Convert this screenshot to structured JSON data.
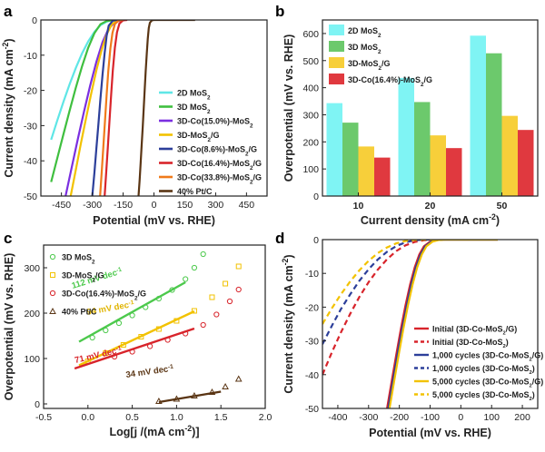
{
  "panel_labels": [
    "a",
    "b",
    "c",
    "d"
  ],
  "chart_data": [
    {
      "panel": "a",
      "type": "line",
      "xlabel": "Potential (mV vs. RHE)",
      "ylabel": "Current density (mA cm⁻²)",
      "xlim": [
        -550,
        550
      ],
      "ylim": [
        -50,
        0
      ],
      "xticks": [
        "-450",
        "-300",
        "-150",
        "0",
        "150",
        "300",
        "450"
      ],
      "xtick_values": [
        -450,
        -300,
        -150,
        0,
        150,
        300,
        450
      ],
      "yticks": [
        "0",
        "-10",
        "-20",
        "-30",
        "-40",
        "-50"
      ],
      "ytick_values": [
        0,
        -10,
        -20,
        -30,
        -40,
        -50
      ],
      "legend_position": "right",
      "series": [
        {
          "name": "2D MoS₂",
          "color": "#5fe6e6",
          "x": [
            -500,
            -470,
            -440,
            -410,
            -380,
            -350,
            -320,
            -290,
            -260,
            -230,
            -215,
            -200,
            -180,
            -160,
            -150
          ],
          "y": [
            -34,
            -28.5,
            -23.2,
            -18.2,
            -13.6,
            -9.5,
            -6.1,
            -3.4,
            -1.5,
            -0.5,
            -0.2,
            -0.1,
            0,
            0,
            0
          ]
        },
        {
          "name": "3D MoS₂",
          "color": "#3fbf3f",
          "x": [
            -500,
            -470,
            -440,
            -410,
            -380,
            -350,
            -320,
            -290,
            -260,
            -230,
            -200,
            -180,
            -170
          ],
          "y": [
            -46,
            -39.2,
            -32.4,
            -25.7,
            -19.2,
            -13.2,
            -7.9,
            -3.8,
            -1.2,
            -0.3,
            -0.1,
            0,
            0
          ]
        },
        {
          "name": "3D-Co(15.0%)-MoS₂",
          "color": "#7b2fe0",
          "x": [
            -430,
            -400,
            -370,
            -340,
            -310,
            -280,
            -250,
            -220,
            -190,
            -160,
            -140
          ],
          "y": [
            -50,
            -41.8,
            -33.8,
            -26.0,
            -18.6,
            -11.9,
            -6.3,
            -2.4,
            -0.6,
            -0.1,
            0
          ]
        },
        {
          "name": "3D-MoS₂/G",
          "color": "#f2c200",
          "x": [
            -405,
            -380,
            -355,
            -330,
            -305,
            -280,
            -255,
            -230,
            -205,
            -180,
            -160
          ],
          "y": [
            -50,
            -42.5,
            -35.0,
            -27.8,
            -20.8,
            -14.3,
            -8.6,
            -4.1,
            -1.2,
            -0.2,
            0
          ]
        },
        {
          "name": "3D-Co(8.6%)-MoS₂/G",
          "color": "#2c3f9a",
          "x": [
            -300,
            -290,
            -280,
            -270,
            -260,
            -250,
            -240,
            -230,
            -220,
            -200,
            -180
          ],
          "y": [
            -50,
            -43.5,
            -36.5,
            -29.4,
            -22.3,
            -15.5,
            -9.4,
            -4.5,
            -1.6,
            -0.2,
            0
          ]
        },
        {
          "name": "3D-Co(16.4%)-MoS₂/G",
          "color": "#d8242b",
          "x": [
            -240,
            -232,
            -224,
            -216,
            -208,
            -200,
            -190,
            -180,
            -168,
            -150,
            -130
          ],
          "y": [
            -50,
            -43.0,
            -35.8,
            -28.4,
            -21.1,
            -14.3,
            -7.8,
            -3.5,
            -1.0,
            -0.1,
            0
          ]
        },
        {
          "name": "3D-Co(33.8%)-MoS₂/G",
          "color": "#f07a1a",
          "x": [
            -262,
            -254,
            -246,
            -238,
            -230,
            -222,
            -212,
            -202,
            -190,
            -170,
            -150
          ],
          "y": [
            -50,
            -43.1,
            -35.9,
            -28.6,
            -21.3,
            -14.6,
            -8.1,
            -3.7,
            -1.1,
            -0.1,
            0
          ]
        },
        {
          "name": "40% Pt/C",
          "color": "#5a3514",
          "x": [
            -75,
            -70,
            -65,
            -60,
            -55,
            -50,
            -45,
            -40,
            -35,
            -30,
            -25,
            -20,
            -10,
            0,
            200
          ],
          "y": [
            -50,
            -45.6,
            -40.8,
            -35.8,
            -30.6,
            -25.2,
            -19.8,
            -14.5,
            -9.5,
            -5.3,
            -2.3,
            -0.8,
            -0.1,
            0,
            0
          ]
        }
      ]
    },
    {
      "panel": "b",
      "type": "bar",
      "xlabel": "Current density (mA cm⁻²)",
      "ylabel": "Overpotential (mV vs. RHE)",
      "categories": [
        "10",
        "20",
        "50"
      ],
      "ylim": [
        0,
        650
      ],
      "yticks": [
        "0",
        "100",
        "200",
        "300",
        "400",
        "500",
        "600"
      ],
      "ytick_values": [
        0,
        100,
        200,
        300,
        400,
        500,
        600
      ],
      "legend_position": "top-left",
      "series": [
        {
          "name": "2D MoS₂",
          "color": "#7ff4f4",
          "values": [
            343,
            436,
            592
          ]
        },
        {
          "name": "3D MoS₂",
          "color": "#6cc96c",
          "values": [
            271,
            347,
            527
          ]
        },
        {
          "name": "3D-MoS₂/G",
          "color": "#f7cf3a",
          "values": [
            183,
            224,
            296
          ]
        },
        {
          "name": "3D-Co(16.4%)-MoS₂/G",
          "color": "#e0393f",
          "values": [
            142,
            177,
            244
          ]
        }
      ]
    },
    {
      "panel": "c",
      "type": "scatter",
      "xlabel": "Log[j /(mA cm⁻²)]",
      "ylabel": "Overpotential (mV vs. RHE)",
      "xlim": [
        -0.5,
        2.0
      ],
      "ylim": [
        -10,
        350
      ],
      "xticks": [
        "-0.5",
        "0.0",
        "0.5",
        "1.0",
        "1.5",
        "2.0"
      ],
      "xtick_values": [
        -0.5,
        0.0,
        0.5,
        1.0,
        1.5,
        2.0
      ],
      "yticks": [
        "0",
        "100",
        "200",
        "300"
      ],
      "ytick_values": [
        0,
        100,
        200,
        300
      ],
      "legend_position": "top-left",
      "series": [
        {
          "name": "3D MoS₂",
          "color": "#4cc94c",
          "marker": "circle",
          "x": [
            0.05,
            0.2,
            0.35,
            0.5,
            0.65,
            0.8,
            0.95,
            1.1,
            1.2,
            1.3
          ],
          "y": [
            146,
            162,
            178,
            195,
            213,
            232,
            251,
            275,
            300,
            330
          ],
          "fit": {
            "x": [
              -0.1,
              1.1
            ],
            "y": [
              137,
              268
            ]
          }
        },
        {
          "name": "3D-MoS₂/G",
          "color": "#f2c200",
          "marker": "square",
          "x": [
            0.0,
            0.2,
            0.4,
            0.6,
            0.8,
            1.0,
            1.2,
            1.4,
            1.55,
            1.7
          ],
          "y": [
            94,
            112,
            130,
            148,
            165,
            183,
            205,
            235,
            265,
            303
          ],
          "fit": {
            "x": [
              -0.1,
              1.2
            ],
            "y": [
              85,
              204
            ]
          }
        },
        {
          "name": "3D-Co(16.4%)-MoS₂/G",
          "color": "#d8242b",
          "marker": "circle",
          "x": [
            0.3,
            0.5,
            0.7,
            0.9,
            1.1,
            1.3,
            1.45,
            1.6,
            1.7
          ],
          "y": [
            104,
            115,
            127,
            141,
            155,
            174,
            197,
            226,
            252
          ],
          "fit": {
            "x": [
              -0.15,
              1.2
            ],
            "y": [
              78,
              166
            ]
          }
        },
        {
          "name": "40% Pt/C",
          "color": "#5a3514",
          "marker": "triangle",
          "x": [
            0.8,
            1.0,
            1.2,
            1.4,
            1.55,
            1.7
          ],
          "y": [
            6,
            11,
            18,
            26,
            38,
            55
          ],
          "fit": {
            "x": [
              0.8,
              1.5
            ],
            "y": [
              4,
              27
            ]
          }
        }
      ],
      "annotations": [
        {
          "text": "112 mV dec⁻¹",
          "color": "#4cc94c"
        },
        {
          "text": "94 mV dec⁻¹",
          "color": "#e0b400"
        },
        {
          "text": "71 mV dec⁻¹",
          "color": "#d8242b"
        },
        {
          "text": "34 mV dec⁻¹",
          "color": "#5a3514"
        }
      ]
    },
    {
      "panel": "d",
      "type": "line",
      "xlabel": "Potential (mV vs. RHE)",
      "ylabel": "Current density (mA cm⁻²)",
      "xlim": [
        -450,
        250
      ],
      "ylim": [
        -50,
        0
      ],
      "xticks": [
        "-400",
        "-300",
        "-200",
        "-100",
        "0",
        "100",
        "200"
      ],
      "xtick_values": [
        -400,
        -300,
        -200,
        -100,
        0,
        100,
        200
      ],
      "yticks": [
        "0",
        "-10",
        "-20",
        "-30",
        "-40",
        "-50"
      ],
      "ytick_values": [
        0,
        -10,
        -20,
        -30,
        -40,
        -50
      ],
      "legend_position": "bottom-right",
      "series": [
        {
          "name": "Initial (3D-Co-MoS₂/G)",
          "color": "#d8242b",
          "dash": false,
          "x": [
            -240,
            -225,
            -210,
            -195,
            -180,
            -165,
            -150,
            -135,
            -120,
            -100,
            -80,
            -60,
            120
          ],
          "y": [
            -50,
            -42,
            -34,
            -26.5,
            -19.5,
            -13.3,
            -8.2,
            -4.4,
            -2.0,
            -0.6,
            -0.1,
            0,
            0
          ]
        },
        {
          "name": "Initial (3D-Co-MoS₂)",
          "color": "#d8242b",
          "dash": true,
          "x": [
            -450,
            -420,
            -390,
            -360,
            -330,
            -300,
            -270,
            -240,
            -210,
            -180,
            -150,
            -120,
            -90,
            -60
          ],
          "y": [
            -40,
            -33.5,
            -27.5,
            -22.0,
            -17.0,
            -12.6,
            -8.9,
            -5.8,
            -3.4,
            -1.7,
            -0.7,
            -0.2,
            0,
            0
          ]
        },
        {
          "name": "1,000 cycles (3D-Co-MoS₂/G)",
          "color": "#2c3f9a",
          "dash": false,
          "x": [
            -236,
            -221,
            -206,
            -191,
            -176,
            -161,
            -146,
            -131,
            -116,
            -96,
            -76,
            -56,
            120
          ],
          "y": [
            -50,
            -42,
            -34,
            -26.5,
            -19.5,
            -13.3,
            -8.2,
            -4.4,
            -2.0,
            -0.6,
            -0.1,
            0,
            0
          ]
        },
        {
          "name": "1,000 cycles (3D-Co-MoS₂)",
          "color": "#2c3f9a",
          "dash": true,
          "x": [
            -450,
            -420,
            -390,
            -360,
            -330,
            -300,
            -270,
            -240,
            -210,
            -180,
            -150,
            -120,
            -90,
            -60
          ],
          "y": [
            -31,
            -25.6,
            -20.6,
            -16.2,
            -12.2,
            -8.8,
            -5.9,
            -3.6,
            -1.9,
            -0.8,
            -0.2,
            0,
            0,
            0
          ]
        },
        {
          "name": "5,000 cycles (3D-Co-MoS₂/G)",
          "color": "#f2c200",
          "dash": false,
          "x": [
            -232,
            -217,
            -202,
            -187,
            -172,
            -157,
            -142,
            -127,
            -112,
            -92,
            -72,
            -52,
            120
          ],
          "y": [
            -50,
            -42,
            -34,
            -26.5,
            -19.5,
            -13.3,
            -8.2,
            -4.4,
            -2.0,
            -0.6,
            -0.1,
            0,
            0
          ]
        },
        {
          "name": "5,000 cycles (3D-Co-MoS₂)",
          "color": "#f2c200",
          "dash": true,
          "x": [
            -450,
            -420,
            -390,
            -360,
            -330,
            -300,
            -270,
            -240,
            -210,
            -180,
            -150,
            -120,
            -90,
            -60
          ],
          "y": [
            -25,
            -20.4,
            -16.2,
            -12.4,
            -9.1,
            -6.3,
            -4.0,
            -2.3,
            -1.1,
            -0.4,
            -0.1,
            0,
            0,
            0
          ]
        }
      ]
    }
  ]
}
